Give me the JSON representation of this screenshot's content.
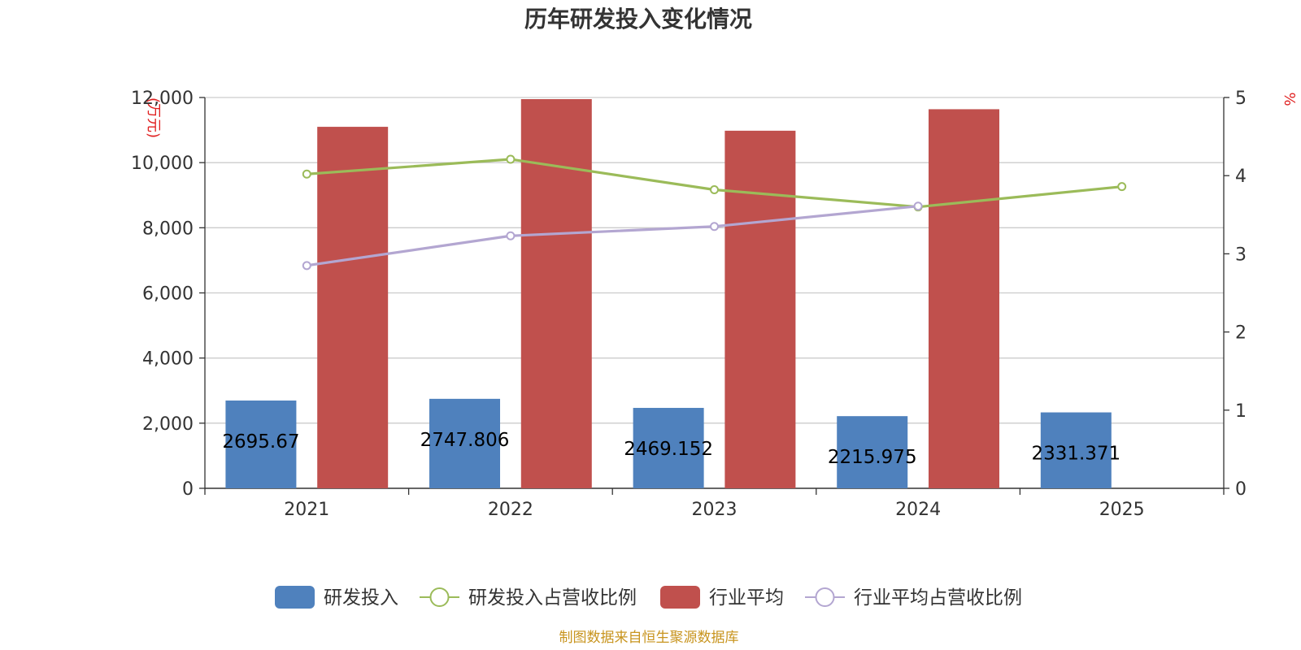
{
  "chart_data": {
    "type": "bar",
    "title": "历年研发投入变化情况",
    "categories": [
      "2021",
      "2022",
      "2023",
      "2024",
      "2025"
    ],
    "y_left": {
      "unit": "(万元)",
      "min": 0,
      "max": 12000,
      "ticks": [
        "0",
        "2,000",
        "4,000",
        "6,000",
        "8,000",
        "10,000",
        "12,000"
      ]
    },
    "y_right": {
      "unit": "%",
      "min": 0,
      "max": 5,
      "ticks": [
        "0",
        "1",
        "2",
        "3",
        "4",
        "5"
      ]
    },
    "series": [
      {
        "name": "研发投入",
        "kind": "bar",
        "axis": "left",
        "color": "#4f81bd",
        "values": [
          2695.67,
          2747.806,
          2469.152,
          2215.975,
          2331.371
        ],
        "labels": [
          "2695.67",
          "2747.806",
          "2469.152",
          "2215.975",
          "2331.371"
        ]
      },
      {
        "name": "研发投入占营收比例",
        "kind": "line",
        "axis": "right",
        "color": "#9bbb59",
        "values": [
          4.02,
          4.21,
          3.82,
          3.6,
          3.86
        ]
      },
      {
        "name": "行业平均",
        "kind": "bar",
        "axis": "left",
        "color": "#c0504d",
        "values": [
          11100,
          11950,
          10980,
          11640,
          null
        ]
      },
      {
        "name": "行业平均占营收比例",
        "kind": "line",
        "axis": "right",
        "color": "#b3a6d1",
        "values": [
          2.85,
          3.23,
          3.35,
          3.61,
          null
        ]
      }
    ],
    "grid": true,
    "legend_position": "bottom"
  },
  "source_note": "制图数据来自恒生聚源数据库"
}
